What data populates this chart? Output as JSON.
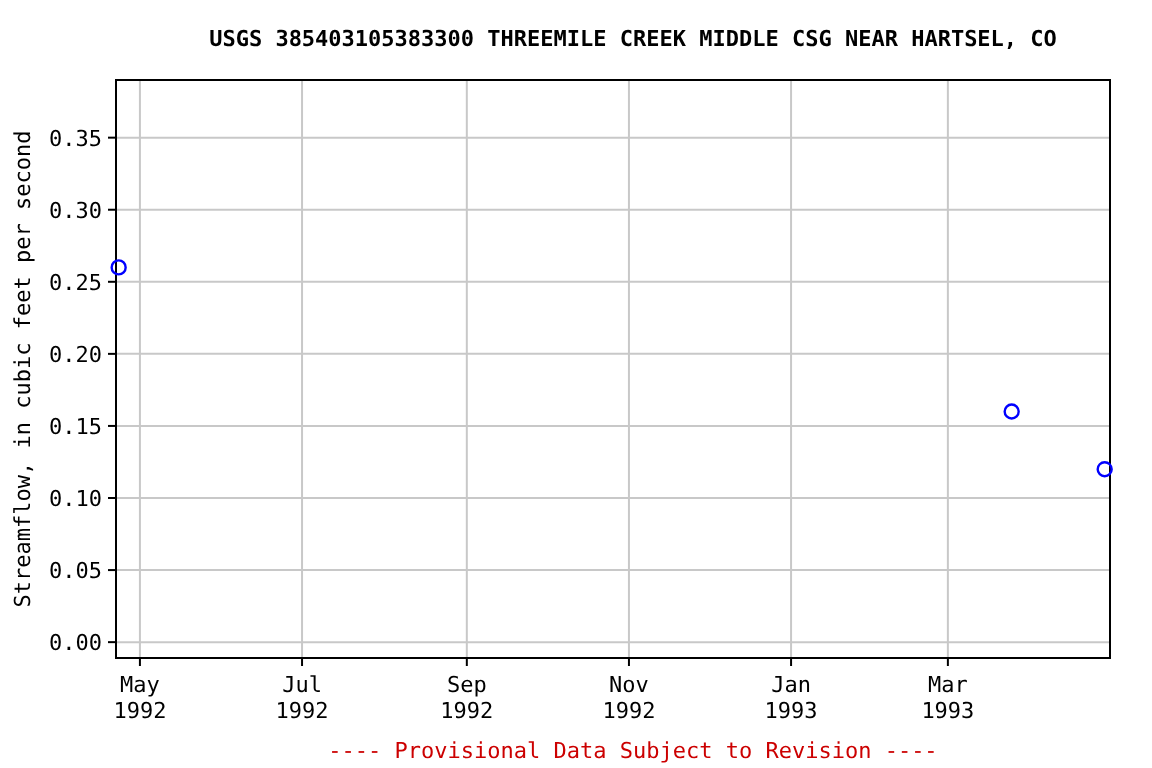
{
  "chart_data": {
    "type": "scatter",
    "title": "USGS 385403105383300 THREEMILE CREEK MIDDLE CSG NEAR HARTSEL, CO",
    "ylabel": "Streamflow, in cubic feet per second",
    "annotations": [
      "---- Provisional Data Subject to Revision ----"
    ],
    "x": [
      "1992-04-23",
      "1993-03-25",
      "1993-04-29"
    ],
    "series": [
      {
        "color": "#0000ff",
        "values": [
          0.26,
          0.16,
          0.12
        ]
      }
    ],
    "xlim": [
      "1992-04-22",
      "1993-05-01"
    ],
    "xticks": [
      {
        "value": "1992-05-01",
        "label": "May 1992"
      },
      {
        "value": "1992-07-01",
        "label": "Jul 1992"
      },
      {
        "value": "1992-09-01",
        "label": "Sep 1992"
      },
      {
        "value": "1992-11-01",
        "label": "Nov 1992"
      },
      {
        "value": "1993-01-01",
        "label": "Jan 1993"
      },
      {
        "value": "1993-03-01",
        "label": "Mar 1993"
      }
    ],
    "ylim": [
      -0.011,
      0.39
    ],
    "yticks": [
      {
        "value": 0,
        "label": "0.00"
      },
      {
        "value": 0.05,
        "label": "0.05"
      },
      {
        "value": 0.1,
        "label": "0.10"
      },
      {
        "value": 0.15,
        "label": "0.15"
      },
      {
        "value": 0.2,
        "label": "0.20"
      },
      {
        "value": 0.25,
        "label": "0.25"
      },
      {
        "value": 0.3,
        "label": "0.30"
      },
      {
        "value": 0.35,
        "label": "0.35"
      }
    ],
    "grid": true,
    "marker": "circle"
  }
}
